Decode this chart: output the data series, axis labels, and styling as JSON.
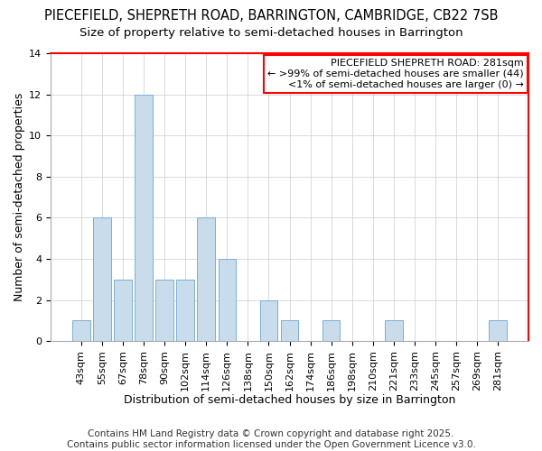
{
  "title1": "PIECEFIELD, SHEPRETH ROAD, BARRINGTON, CAMBRIDGE, CB22 7SB",
  "title2": "Size of property relative to semi-detached houses in Barrington",
  "xlabel": "Distribution of semi-detached houses by size in Barrington",
  "ylabel": "Number of semi-detached properties",
  "categories": [
    "43sqm",
    "55sqm",
    "67sqm",
    "78sqm",
    "90sqm",
    "102sqm",
    "114sqm",
    "126sqm",
    "138sqm",
    "150sqm",
    "162sqm",
    "174sqm",
    "186sqm",
    "198sqm",
    "210sqm",
    "221sqm",
    "233sqm",
    "245sqm",
    "257sqm",
    "269sqm",
    "281sqm"
  ],
  "values": [
    1,
    6,
    3,
    12,
    3,
    3,
    6,
    4,
    0,
    2,
    1,
    0,
    1,
    0,
    0,
    1,
    0,
    0,
    0,
    0,
    1
  ],
  "bar_color": "#c9dcec",
  "bar_edgecolor": "#7aafd4",
  "legend_title": "PIECEFIELD SHEPRETH ROAD: 281sqm",
  "legend_line1": "← >99% of semi-detached houses are smaller (44)",
  "legend_line2": "<1% of semi-detached houses are larger (0) →",
  "ylim": [
    0,
    14
  ],
  "yticks": [
    0,
    2,
    4,
    6,
    8,
    10,
    12,
    14
  ],
  "footer": "Contains HM Land Registry data © Crown copyright and database right 2025.\nContains public sector information licensed under the Open Government Licence v3.0.",
  "bg_color": "#ffffff",
  "plot_bg_color": "#ffffff",
  "title_fontsize": 10.5,
  "subtitle_fontsize": 9.5,
  "axis_label_fontsize": 9,
  "tick_fontsize": 8,
  "legend_fontsize": 8,
  "footer_fontsize": 7.5
}
